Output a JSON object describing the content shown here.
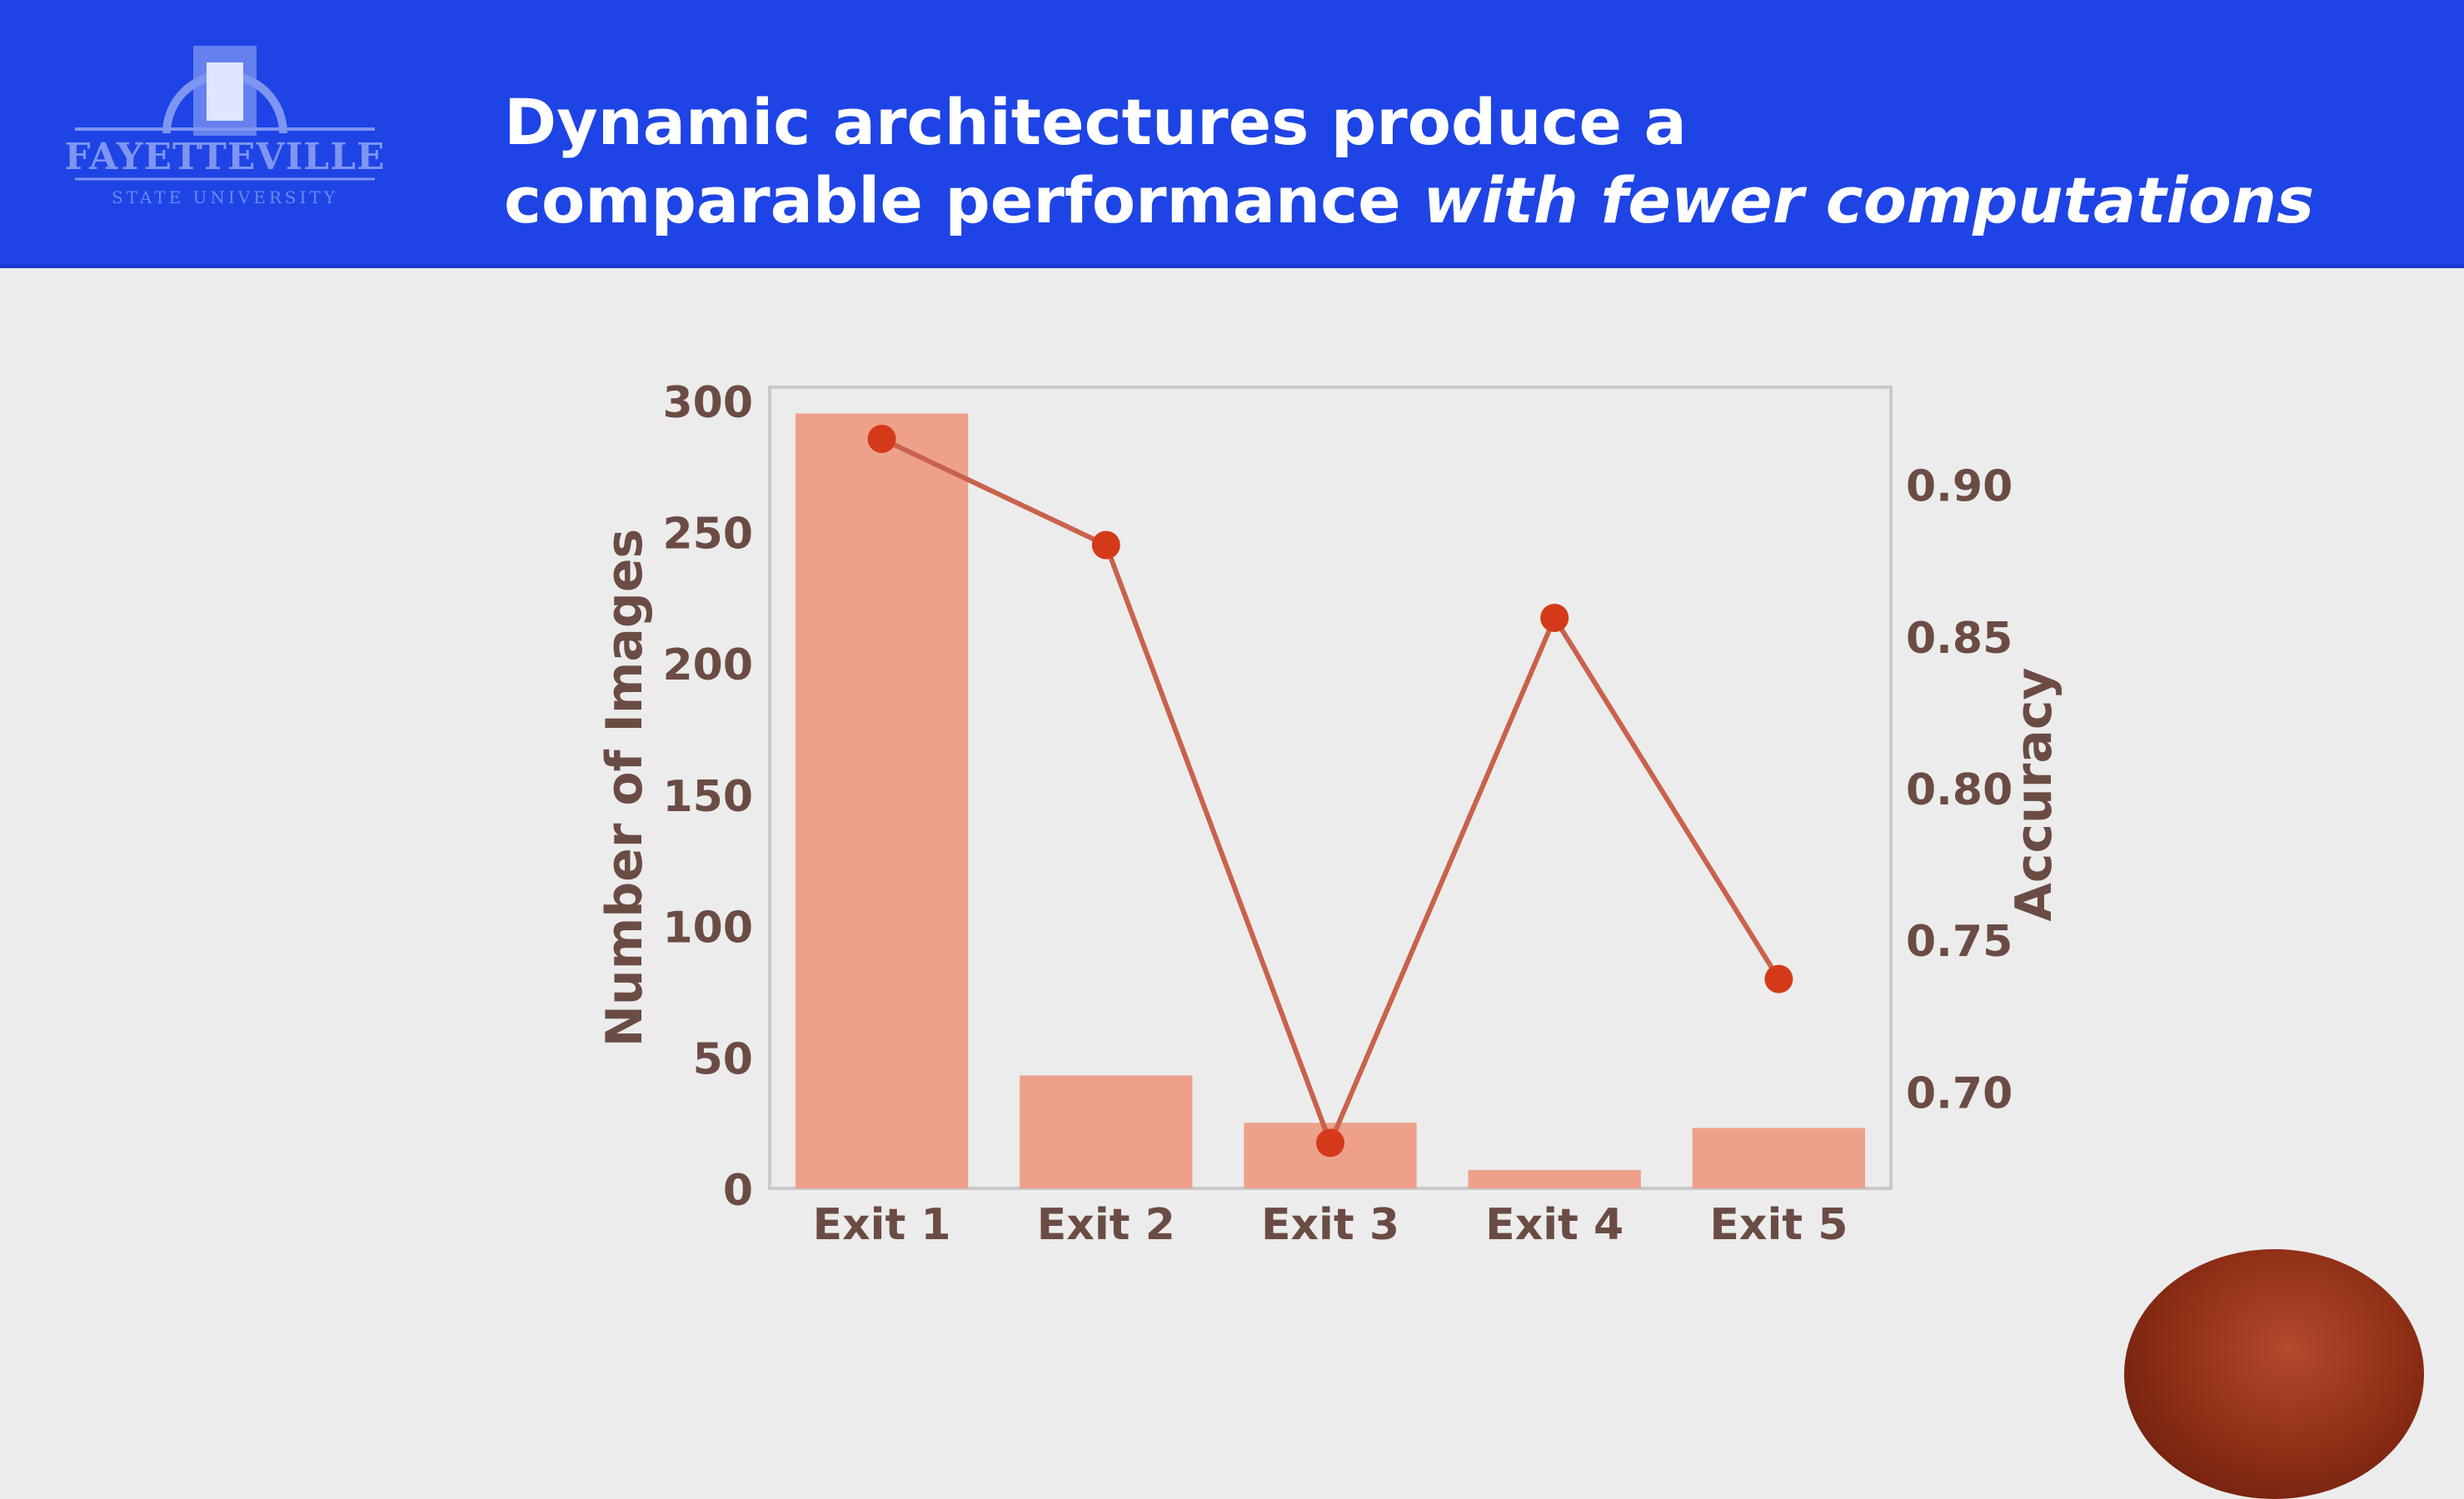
{
  "header": {
    "logo": {
      "name": "FAYETTEVILLE",
      "sub": "STATE UNIVERSITY"
    },
    "title_line1": "Dynamic architectures produce a",
    "title_line2_plain": "comparable performance ",
    "title_line2_italic": "with fewer computations"
  },
  "colors": {
    "header_bg": "#1e44e6",
    "bar": "#eda18b",
    "line": "#c9624c",
    "marker": "#d43a1a",
    "axis_text": "#6b4c44"
  },
  "chart_data": {
    "type": "bar",
    "categories": [
      "Exit 1",
      "Exit 2",
      "Exit 3",
      "Exit 4",
      "Exit 5"
    ],
    "series": [
      {
        "type": "bar",
        "axis": "left",
        "values": [
          295,
          43,
          25,
          7,
          23
        ]
      },
      {
        "type": "line",
        "axis": "right",
        "values": [
          0.915,
          0.88,
          0.683,
          0.856,
          0.737
        ]
      }
    ],
    "ylabel": "Number of Images",
    "y2label": "Accuracy",
    "ylim": [
      0,
      305
    ],
    "y2lim": [
      0.668,
      0.932
    ],
    "yticks": [
      "0",
      "50",
      "100",
      "150",
      "200",
      "250",
      "300"
    ],
    "y2ticks": [
      "0.70",
      "0.75",
      "0.80",
      "0.85",
      "0.90"
    ],
    "grid": false
  }
}
